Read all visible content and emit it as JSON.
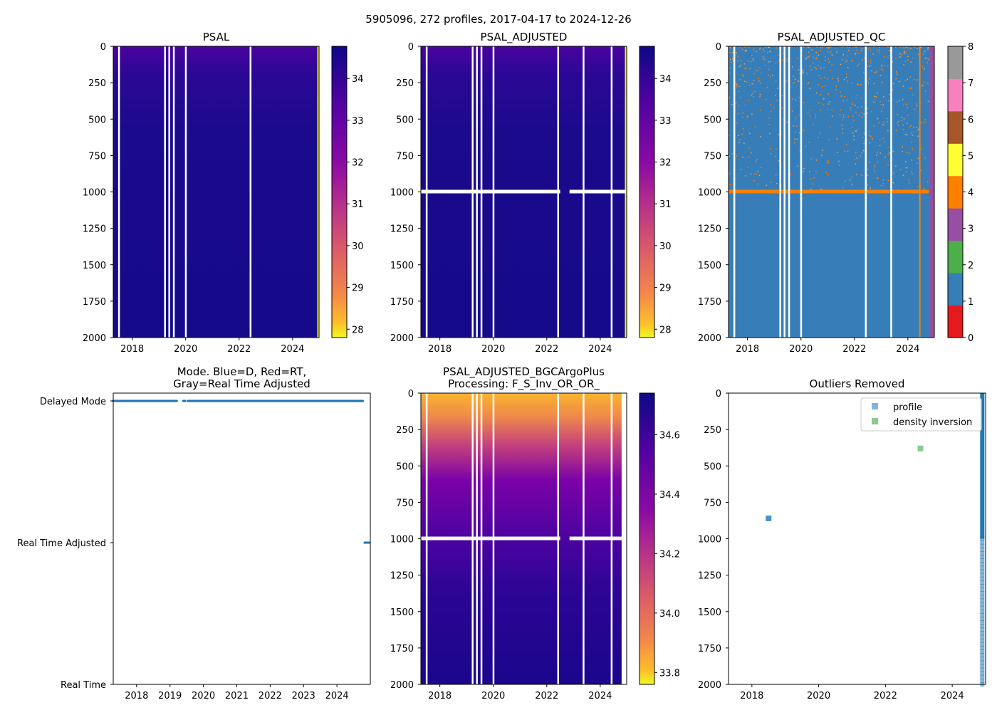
{
  "suptitle": "5905096, 272 profiles, 2017-04-17 to 2024-12-26",
  "colors": {
    "profile": "#1f77b4",
    "density_inversion": "#2ca02c",
    "qc_main": "#377eb8",
    "qc_bad": "#ff7f00",
    "qc_strip": "#984ea3"
  },
  "chart_data": [
    {
      "id": "psal",
      "type": "heatmap",
      "title": [
        "PSAL"
      ],
      "xlim": [
        2017.29,
        2024.99
      ],
      "xticks": [
        2018,
        2020,
        2022,
        2024
      ],
      "ylim": [
        2000,
        0
      ],
      "yticks": [
        0,
        250,
        500,
        750,
        1000,
        1250,
        1500,
        1750,
        2000
      ],
      "colorbar": {
        "colormap": "plasma_r",
        "clim": [
          27.8,
          34.77
        ],
        "ticks": [
          28,
          29,
          30,
          31,
          32,
          33,
          34
        ]
      },
      "gaps": [
        2017.5,
        2019.22,
        2019.38,
        2019.55,
        2020.0,
        2022.42
      ],
      "fresh_surface_value": 34.2,
      "deep_value": 34.7,
      "last_profile_value": 27.8
    },
    {
      "id": "psal_adj",
      "type": "heatmap",
      "title": [
        "PSAL_ADJUSTED"
      ],
      "xlim": [
        2017.29,
        2024.99
      ],
      "xticks": [
        2018,
        2020,
        2022,
        2024
      ],
      "ylim": [
        2000,
        0
      ],
      "yticks": [
        0,
        250,
        500,
        750,
        1000,
        1250,
        1500,
        1750,
        2000
      ],
      "colorbar": {
        "colormap": "plasma_r",
        "clim": [
          27.8,
          34.77
        ],
        "ticks": [
          28,
          29,
          30,
          31,
          32,
          33,
          34
        ]
      },
      "gaps": [
        2017.5,
        2019.22,
        2019.38,
        2019.55,
        2020.0,
        2022.42,
        2023.37,
        2024.42
      ],
      "missing_depth": 1000,
      "missing_depth_break": [
        2022.5,
        2022.85
      ]
    },
    {
      "id": "psal_adj_qc",
      "type": "heatmap",
      "title": [
        "PSAL_ADJUSTED_QC"
      ],
      "xlim": [
        2017.29,
        2024.99
      ],
      "xticks": [
        2018,
        2020,
        2022,
        2024
      ],
      "ylim": [
        2000,
        0
      ],
      "yticks": [
        0,
        250,
        500,
        750,
        1000,
        1250,
        1500,
        1750,
        2000
      ],
      "colorbar": {
        "colormap": "Set1",
        "clim": [
          0,
          8
        ],
        "ticks": [
          0,
          1,
          2,
          3,
          4,
          5,
          6,
          7,
          8
        ],
        "category_colors": [
          "#e41a1c",
          "#377eb8",
          "#4daf4a",
          "#984ea3",
          "#ff7f00",
          "#ffff33",
          "#a65628",
          "#f781bf",
          "#999999"
        ]
      },
      "gaps": [
        2017.5,
        2019.22,
        2019.38,
        2019.55,
        2020.0,
        2022.42,
        2023.37
      ],
      "dominant_flag": 1,
      "flag4_depth": 1000,
      "flag4_profile": 2024.42,
      "flag3_from": 2024.8
    },
    {
      "id": "mode",
      "type": "scatter",
      "title": [
        "Mode. Blue=D, Red=RT,",
        "Gray=Real Time Adjusted"
      ],
      "xlim": [
        2017.3,
        2025.0
      ],
      "xticks": [
        2018,
        2019,
        2020,
        2021,
        2022,
        2023,
        2024
      ],
      "ycategories": [
        "Real Time",
        "Real Time Adjusted",
        "Delayed Mode"
      ],
      "series": [
        {
          "name": "Delayed Mode",
          "x_range": [
            2017.3,
            2024.8
          ]
        },
        {
          "name": "Real Time Adjusted",
          "x_range": [
            2024.8,
            2025.0
          ]
        }
      ]
    },
    {
      "id": "bgc",
      "type": "heatmap",
      "title": [
        "PSAL_ADJUSTED_BGCArgoPlus",
        "Processing: F_S_Inv_OR_OR_"
      ],
      "xlim": [
        2017.29,
        2024.99
      ],
      "xticks": [
        2018,
        2020,
        2022,
        2024
      ],
      "ylim": [
        2000,
        0
      ],
      "yticks": [
        0,
        250,
        500,
        750,
        1000,
        1250,
        1500,
        1750,
        2000
      ],
      "colorbar": {
        "colormap": "plasma_r",
        "clim": [
          33.76,
          34.74
        ],
        "ticks": [
          33.8,
          34.0,
          34.2,
          34.4,
          34.6
        ]
      },
      "gaps": [
        2017.5,
        2019.22,
        2019.38,
        2019.55,
        2020.0,
        2022.42,
        2023.37,
        2024.42
      ],
      "missing_depth": 1000,
      "missing_depth_break": [
        2022.5,
        2022.85
      ]
    },
    {
      "id": "outliers",
      "type": "scatter",
      "title": [
        "Outliers Removed"
      ],
      "xlim": [
        2017.3,
        2025.0
      ],
      "xticks": [
        2018,
        2020,
        2022,
        2024
      ],
      "ylim": [
        2000,
        0
      ],
      "yticks": [
        0,
        250,
        500,
        750,
        1000,
        1250,
        1500,
        1750,
        2000
      ],
      "legend": {
        "location": "upper right",
        "entries": [
          "profile",
          "density inversion"
        ]
      },
      "series": [
        {
          "name": "profile",
          "points": [
            [
              2018.5,
              860
            ]
          ],
          "last_profile_x": 2024.9,
          "last_profile_depth_range": [
            0,
            2000
          ]
        },
        {
          "name": "density inversion",
          "points": [
            [
              2023.05,
              380
            ]
          ]
        }
      ]
    }
  ]
}
